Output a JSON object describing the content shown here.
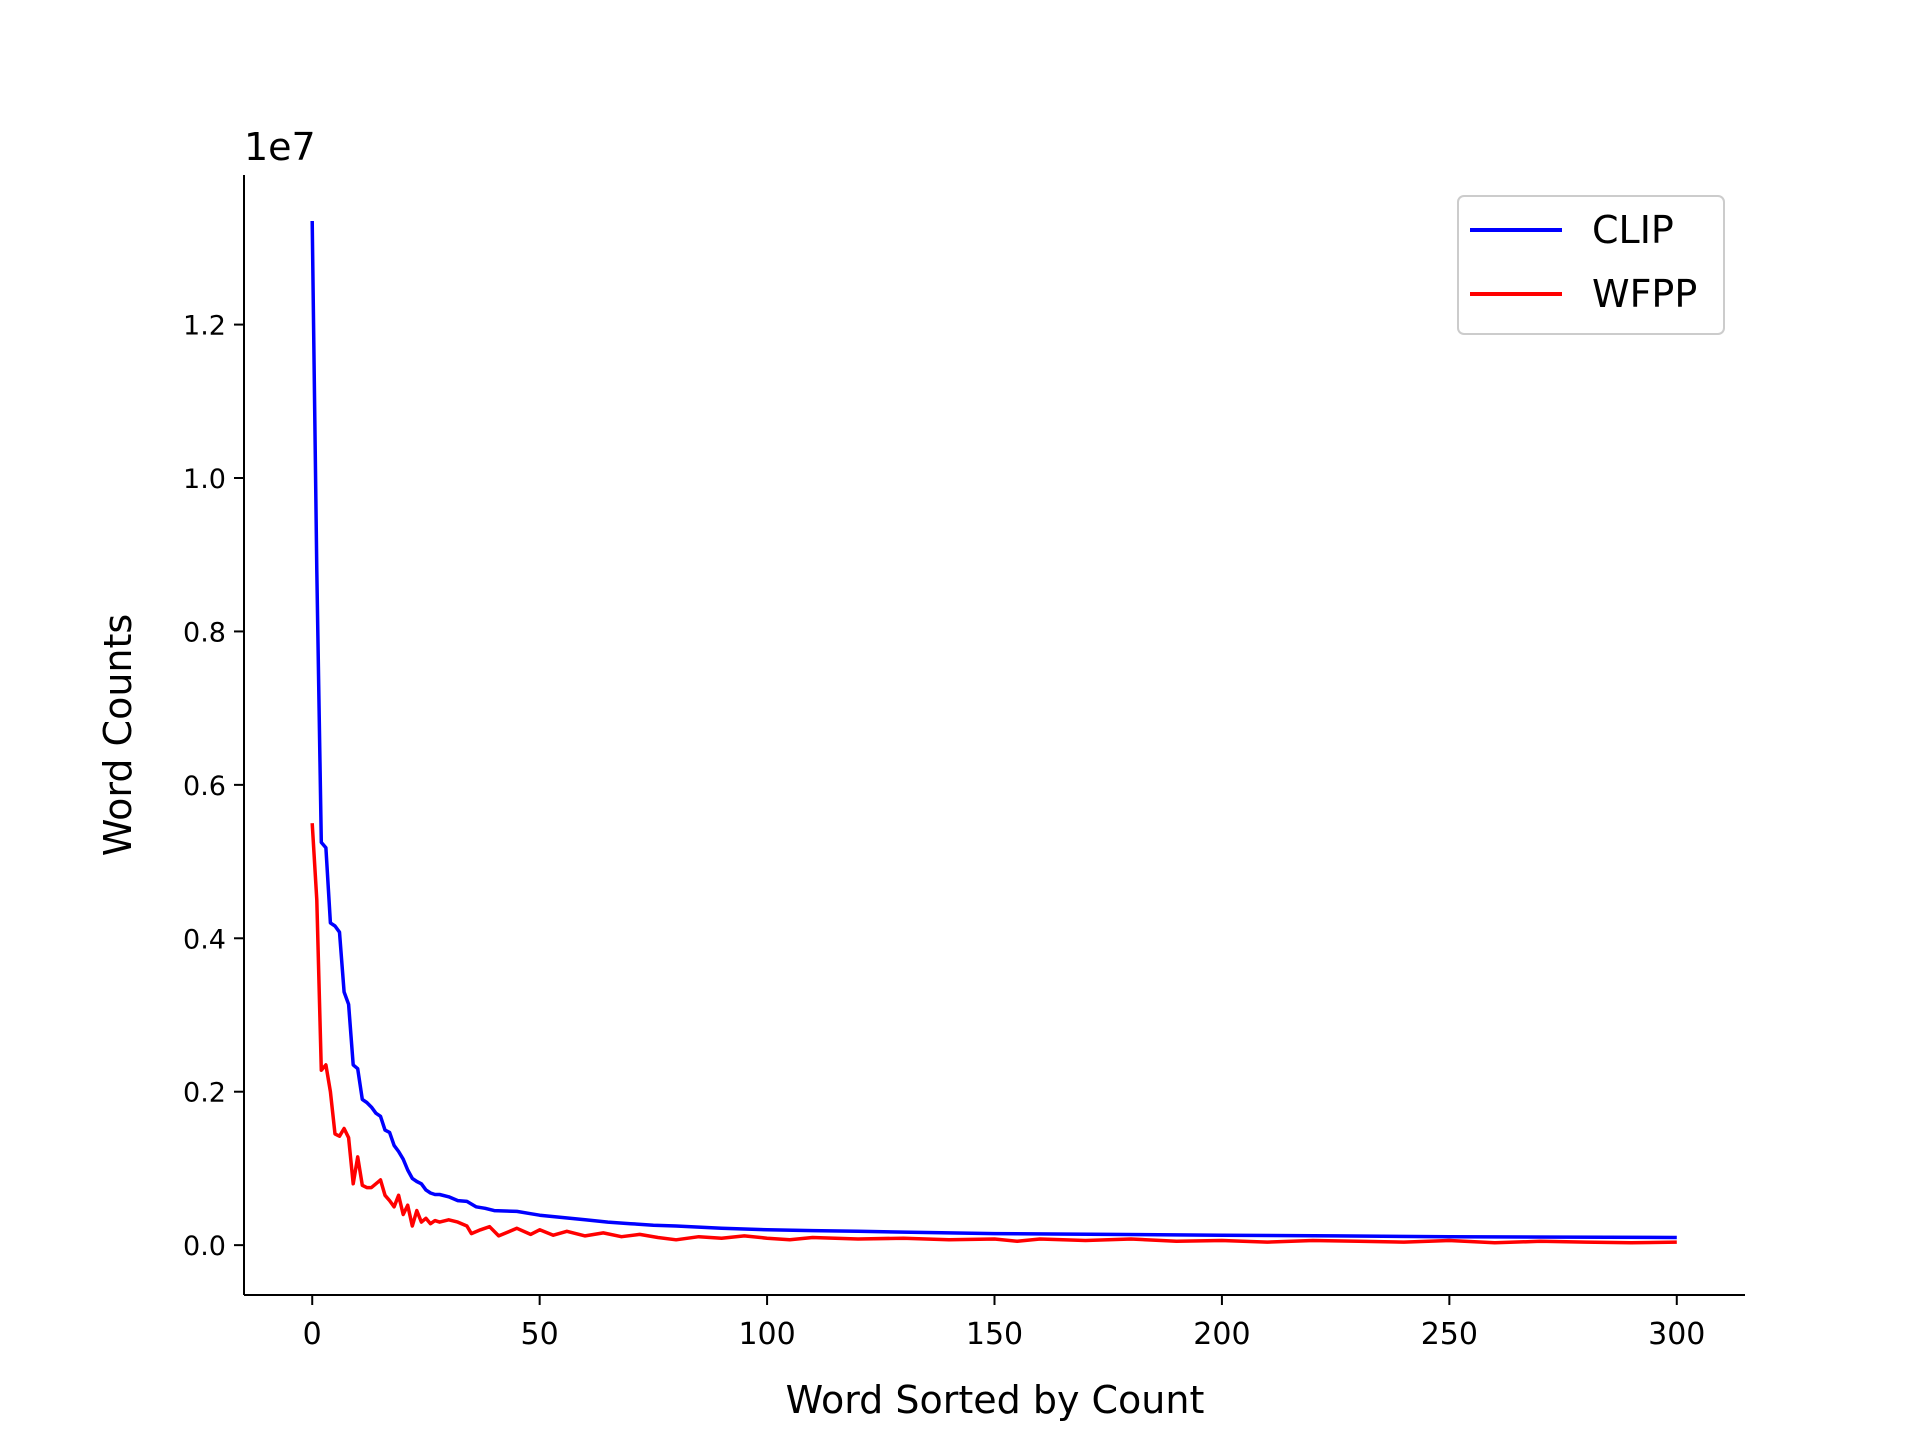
{
  "chart_data": {
    "type": "line",
    "title": "",
    "xlabel": "Word Sorted by Count",
    "ylabel": "Word Counts",
    "y_offset_label": "1e7",
    "xlim": [
      -15,
      315
    ],
    "ylim": [
      -0.065,
      1.395
    ],
    "y_multiplier": 10000000,
    "xticks": [
      0,
      50,
      100,
      150,
      200,
      250,
      300
    ],
    "xtick_labels": [
      "0",
      "50",
      "100",
      "150",
      "200",
      "250",
      "300"
    ],
    "yticks": [
      0.0,
      0.2,
      0.4,
      0.6,
      0.8,
      1.0,
      1.2
    ],
    "ytick_labels": [
      "0.0",
      "0.2",
      "0.4",
      "0.6",
      "0.8",
      "1.0",
      "1.2"
    ],
    "grid": false,
    "legend_position": "top-right",
    "series": [
      {
        "name": "CLIP",
        "color": "#0000ff",
        "points": [
          [
            0,
            1.335
          ],
          [
            1,
            0.88
          ],
          [
            2,
            0.525
          ],
          [
            3,
            0.518
          ],
          [
            4,
            0.42
          ],
          [
            5,
            0.416
          ],
          [
            6,
            0.408
          ],
          [
            7,
            0.33
          ],
          [
            8,
            0.314
          ],
          [
            9,
            0.235
          ],
          [
            10,
            0.23
          ],
          [
            11,
            0.19
          ],
          [
            12,
            0.186
          ],
          [
            13,
            0.18
          ],
          [
            14,
            0.172
          ],
          [
            15,
            0.168
          ],
          [
            16,
            0.15
          ],
          [
            17,
            0.147
          ],
          [
            18,
            0.13
          ],
          [
            19,
            0.122
          ],
          [
            20,
            0.112
          ],
          [
            21,
            0.098
          ],
          [
            22,
            0.087
          ],
          [
            23,
            0.083
          ],
          [
            24,
            0.08
          ],
          [
            25,
            0.072
          ],
          [
            26,
            0.068
          ],
          [
            27,
            0.066
          ],
          [
            28,
            0.066
          ],
          [
            30,
            0.063
          ],
          [
            32,
            0.058
          ],
          [
            34,
            0.057
          ],
          [
            36,
            0.05
          ],
          [
            38,
            0.048
          ],
          [
            40,
            0.045
          ],
          [
            45,
            0.044
          ],
          [
            48,
            0.041
          ],
          [
            50,
            0.039
          ],
          [
            55,
            0.036
          ],
          [
            60,
            0.033
          ],
          [
            65,
            0.03
          ],
          [
            70,
            0.028
          ],
          [
            75,
            0.026
          ],
          [
            80,
            0.025
          ],
          [
            90,
            0.022
          ],
          [
            100,
            0.02
          ],
          [
            110,
            0.019
          ],
          [
            120,
            0.018
          ],
          [
            130,
            0.017
          ],
          [
            140,
            0.016
          ],
          [
            150,
            0.015
          ],
          [
            175,
            0.014
          ],
          [
            200,
            0.013
          ],
          [
            225,
            0.012
          ],
          [
            250,
            0.011
          ],
          [
            275,
            0.0105
          ],
          [
            300,
            0.01
          ]
        ]
      },
      {
        "name": "WFPP",
        "color": "#ff0000",
        "points": [
          [
            0,
            0.55
          ],
          [
            1,
            0.45
          ],
          [
            2,
            0.228
          ],
          [
            3,
            0.235
          ],
          [
            4,
            0.2
          ],
          [
            5,
            0.145
          ],
          [
            6,
            0.142
          ],
          [
            7,
            0.152
          ],
          [
            8,
            0.14
          ],
          [
            9,
            0.08
          ],
          [
            10,
            0.115
          ],
          [
            11,
            0.078
          ],
          [
            12,
            0.075
          ],
          [
            13,
            0.075
          ],
          [
            14,
            0.08
          ],
          [
            15,
            0.085
          ],
          [
            16,
            0.065
          ],
          [
            17,
            0.058
          ],
          [
            18,
            0.05
          ],
          [
            19,
            0.065
          ],
          [
            20,
            0.04
          ],
          [
            21,
            0.052
          ],
          [
            22,
            0.025
          ],
          [
            23,
            0.045
          ],
          [
            24,
            0.03
          ],
          [
            25,
            0.035
          ],
          [
            26,
            0.028
          ],
          [
            27,
            0.032
          ],
          [
            28,
            0.03
          ],
          [
            30,
            0.033
          ],
          [
            32,
            0.03
          ],
          [
            34,
            0.025
          ],
          [
            35,
            0.015
          ],
          [
            37,
            0.02
          ],
          [
            39,
            0.024
          ],
          [
            41,
            0.012
          ],
          [
            43,
            0.017
          ],
          [
            45,
            0.022
          ],
          [
            48,
            0.014
          ],
          [
            50,
            0.02
          ],
          [
            53,
            0.013
          ],
          [
            56,
            0.018
          ],
          [
            60,
            0.012
          ],
          [
            64,
            0.016
          ],
          [
            68,
            0.011
          ],
          [
            72,
            0.014
          ],
          [
            76,
            0.01
          ],
          [
            80,
            0.007
          ],
          [
            85,
            0.011
          ],
          [
            90,
            0.009
          ],
          [
            95,
            0.012
          ],
          [
            100,
            0.009
          ],
          [
            105,
            0.007
          ],
          [
            110,
            0.01
          ],
          [
            120,
            0.008
          ],
          [
            130,
            0.009
          ],
          [
            140,
            0.007
          ],
          [
            150,
            0.008
          ],
          [
            155,
            0.005
          ],
          [
            160,
            0.008
          ],
          [
            170,
            0.006
          ],
          [
            180,
            0.008
          ],
          [
            190,
            0.005
          ],
          [
            200,
            0.006
          ],
          [
            210,
            0.004
          ],
          [
            220,
            0.006
          ],
          [
            230,
            0.005
          ],
          [
            240,
            0.004
          ],
          [
            250,
            0.006
          ],
          [
            260,
            0.003
          ],
          [
            270,
            0.005
          ],
          [
            280,
            0.004
          ],
          [
            290,
            0.003
          ],
          [
            300,
            0.004
          ]
        ]
      }
    ]
  }
}
